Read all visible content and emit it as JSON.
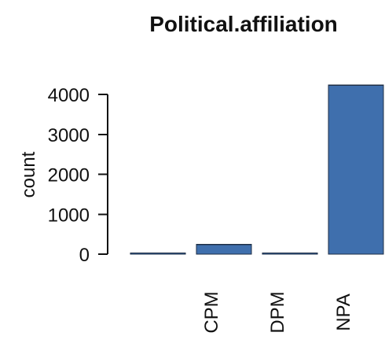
{
  "chart_data": {
    "type": "bar",
    "title": "Political.affiliation",
    "xlabel": "",
    "ylabel": "count",
    "categories": [
      "",
      "CPM",
      "DPM",
      "NPA"
    ],
    "values": [
      20,
      240,
      10,
      4230
    ],
    "ylim": [
      0,
      4300
    ],
    "yticks": [
      0,
      1000,
      2000,
      3000,
      4000
    ],
    "legend": "none",
    "grid": false,
    "bar_color": "#3f6fad"
  }
}
